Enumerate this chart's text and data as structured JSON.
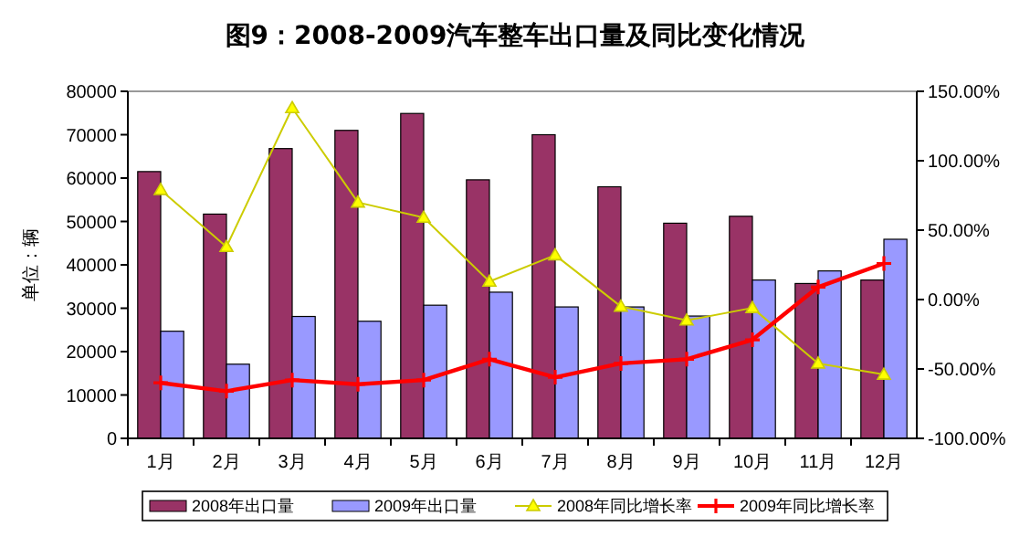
{
  "chart_data": {
    "type": "bar",
    "title": "图9：2008-2009汽车整车出口量及同比变化情况",
    "ylabel": "单位：辆",
    "categories": [
      "1月",
      "2月",
      "3月",
      "4月",
      "5月",
      "6月",
      "7月",
      "8月",
      "9月",
      "10月",
      "11月",
      "12月"
    ],
    "series": [
      {
        "name": "2008年出口量",
        "color": "#993366",
        "values": [
          61500,
          51700,
          66800,
          71000,
          74900,
          59600,
          70000,
          58000,
          49600,
          51200,
          35700,
          36500
        ]
      },
      {
        "name": "2009年出口量",
        "color": "#9999ff",
        "values": [
          24700,
          17100,
          28100,
          27000,
          30700,
          33700,
          30300,
          30300,
          28200,
          36500,
          38600,
          45900
        ]
      },
      {
        "name": "2008年同比增长率",
        "type": "line",
        "axis": "y2",
        "color": "#cccc00",
        "marker": "triangle",
        "values": [
          79,
          38,
          138,
          70,
          59,
          13,
          32,
          -5,
          -15,
          -6,
          -46,
          -54
        ]
      },
      {
        "name": "2009年同比增长率",
        "type": "line",
        "axis": "y2",
        "color": "#ff0000",
        "marker": "cross",
        "values": [
          -60,
          -66,
          -58,
          -61,
          -58,
          -43,
          -56,
          -46,
          -43,
          -29,
          9,
          26
        ]
      }
    ],
    "ylim": [
      0,
      80000
    ],
    "yticks": [
      0,
      10000,
      20000,
      30000,
      40000,
      50000,
      60000,
      70000,
      80000
    ],
    "y2lim": [
      -100,
      150
    ],
    "y2ticks": [
      {
        "value": -100,
        "label": "-100.00%"
      },
      {
        "value": -50,
        "label": "-50.00%"
      },
      {
        "value": 0,
        "label": "0.00%"
      },
      {
        "value": 50,
        "label": "50.00%"
      },
      {
        "value": 100,
        "label": "100.00%"
      },
      {
        "value": 150,
        "label": "150.00%"
      }
    ],
    "legend": "bottom",
    "grid": false
  }
}
